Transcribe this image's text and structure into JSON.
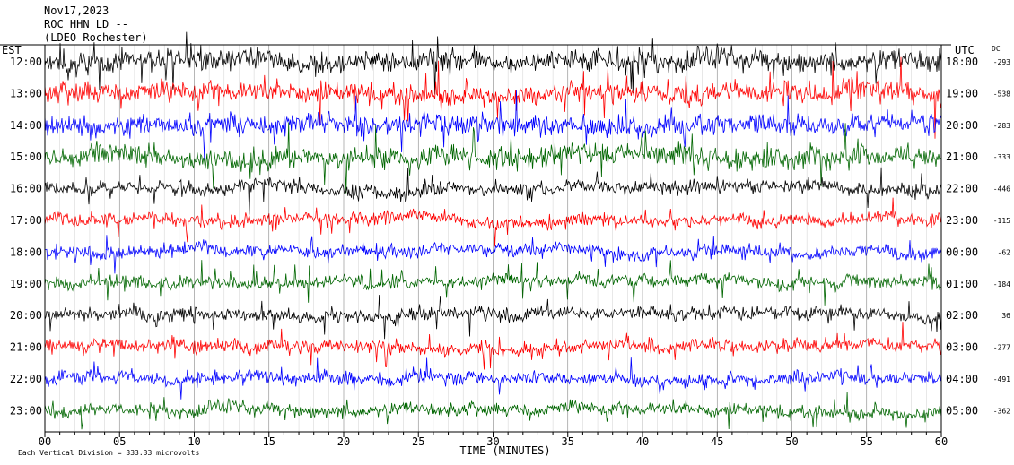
{
  "header": {
    "date": "Nov17,2023",
    "station": "ROC HHN LD --",
    "network": "(LDEO Rochester)",
    "left_zone": "EST",
    "right_zone": "UTC",
    "dc_label": "DC"
  },
  "footer": {
    "scale_note": "Each Vertical Division =  333.33 microvolts",
    "xlabel": "TIME (MINUTES)"
  },
  "chart_data": {
    "type": "line",
    "title": "",
    "xlabel": "TIME (MINUTES)",
    "xlim": [
      0,
      60
    ],
    "x_ticks": [
      "00",
      "05",
      "10",
      "15",
      "20",
      "25",
      "30",
      "35",
      "40",
      "45",
      "50",
      "55",
      "60"
    ],
    "row_colors": [
      "#000000",
      "#ff0000",
      "#0000ff",
      "#006600"
    ],
    "rows": [
      {
        "est": "12:00",
        "utc": "18:00",
        "dc": "-293"
      },
      {
        "est": "13:00",
        "utc": "19:00",
        "dc": "-538"
      },
      {
        "est": "14:00",
        "utc": "20:00",
        "dc": "-283"
      },
      {
        "est": "15:00",
        "utc": "21:00",
        "dc": "-333"
      },
      {
        "est": "16:00",
        "utc": "22:00",
        "dc": "-446"
      },
      {
        "est": "17:00",
        "utc": "23:00",
        "dc": "-115"
      },
      {
        "est": "18:00",
        "utc": "00:00",
        "dc": "-62"
      },
      {
        "est": "19:00",
        "utc": "01:00",
        "dc": "-184"
      },
      {
        "est": "20:00",
        "utc": "02:00",
        "dc": "36"
      },
      {
        "est": "21:00",
        "utc": "03:00",
        "dc": "-277"
      },
      {
        "est": "22:00",
        "utc": "04:00",
        "dc": "-491"
      },
      {
        "est": "23:00",
        "utc": "05:00",
        "dc": "-362"
      }
    ]
  }
}
